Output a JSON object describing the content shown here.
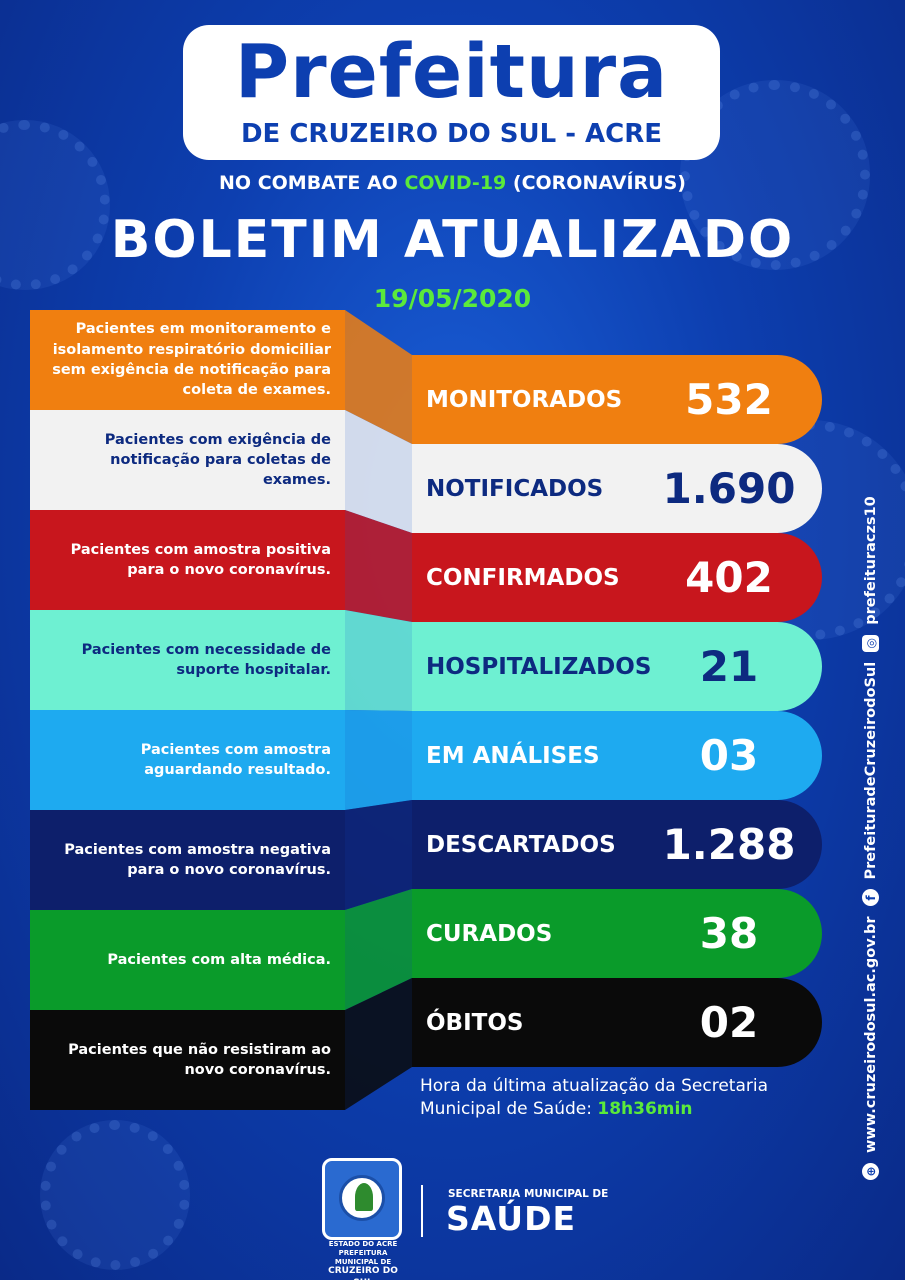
{
  "header": {
    "title": "Prefeitura",
    "subtitle": "DE CRUZEIRO DO SUL - ACRE",
    "combat_prefix": "NO COMBATE AO",
    "combat_highlight": "COVID-19",
    "combat_suffix": "(CORONAVÍRUS)",
    "headline": "BOLETIM ATUALIZADO",
    "date": "19/05/2020"
  },
  "rows": [
    {
      "description": "Pacientes em monitoramento e isolamento respiratório domiciliar sem exigência de notificação para coleta de exames.",
      "label": "MONITORADOS",
      "value": "532",
      "color": "#f07f10",
      "text_color": "#ffffff"
    },
    {
      "description": "Pacientes com exigência de notificação para coletas de exames.",
      "label": "NOTIFICADOS",
      "value": "1.690",
      "color": "#f2f2f2",
      "text_color": "#0d2a80"
    },
    {
      "description": "Pacientes com amostra positiva para o novo coronavírus.",
      "label": "CONFIRMADOS",
      "value": "402",
      "color": "#c8161d",
      "text_color": "#ffffff"
    },
    {
      "description": "Pacientes com necessidade de suporte hospitalar.",
      "label": "HOSPITALIZADOS",
      "value": "21",
      "color": "#6ef0d2",
      "text_color": "#0d2a80"
    },
    {
      "description": "Pacientes com amostra aguardando resultado.",
      "label": "EM ANÁLISES",
      "value": "03",
      "color": "#1eaaf0",
      "text_color": "#ffffff"
    },
    {
      "description": "Pacientes com amostra negativa para o novo coronavírus.",
      "label": "DESCARTADOS",
      "value": "1.288",
      "color": "#0d1f6b",
      "text_color": "#ffffff"
    },
    {
      "description": "Pacientes com alta médica.",
      "label": "CURADOS",
      "value": "38",
      "color": "#0a9b2a",
      "text_color": "#ffffff"
    },
    {
      "description": "Pacientes que não resistiram ao novo coronavírus.",
      "label": "ÓBITOS",
      "value": "02",
      "color": "#0a0a0a",
      "text_color": "#ffffff"
    }
  ],
  "update": {
    "line1": "Hora da última atualização da Secretaria",
    "line2": "Municipal de Saúde:",
    "time": "18h36min"
  },
  "side": {
    "website": "www.cruzeirodosul.ac.gov.br",
    "facebook": "PrefeituradeCruzeirodoSul",
    "instagram": "prefeituraczs10"
  },
  "footer": {
    "crest_line1": "ESTADO DO ACRE",
    "crest_line2": "PREFEITURA MUNICIPAL DE",
    "crest_line3": "CRUZEIRO DO SUL",
    "secretaria": "SECRETARIA MUNICIPAL DE",
    "saude": "SAÚDE"
  }
}
